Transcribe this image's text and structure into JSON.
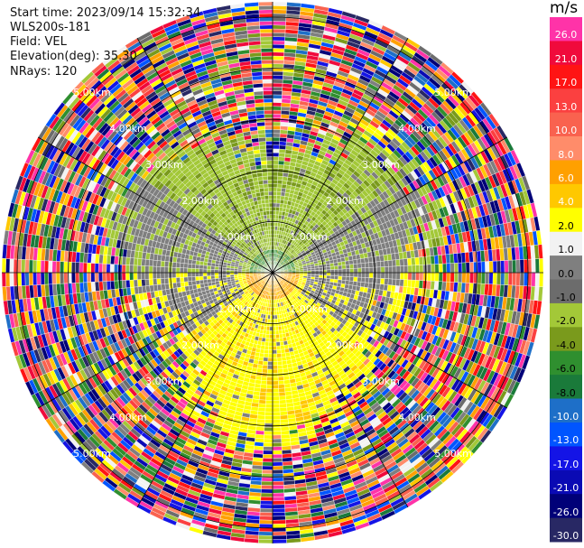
{
  "header": {
    "start_time": "Start time: 2023/09/14 15:32:34",
    "instrument": "WLS200s-181",
    "field": "Field: VEL",
    "elevation": "Elevation(deg): 35.30",
    "nrays": "NRays: 120"
  },
  "colorbar": {
    "unit": "m/s",
    "ticks": [
      "26.0",
      "21.0",
      "17.0",
      "13.0",
      "10.0",
      "8.0",
      "6.0",
      "4.0",
      "2.0",
      "1.0",
      "0.0",
      "-1.0",
      "-2.0",
      "-4.0",
      "-6.0",
      "-8.0",
      "-10.0",
      "-13.0",
      "-17.0",
      "-21.0",
      "-26.0",
      "-30.0"
    ],
    "colors": [
      "#ff33a8",
      "#f00a3c",
      "#ff1414",
      "#fb4040",
      "#f9624f",
      "#ff8c6a",
      "#ffa000",
      "#ffc800",
      "#ffff00",
      "#f2f2f2",
      "#7f7f7f",
      "#6c6c6c",
      "#a3c838",
      "#7a9a1c",
      "#2f8f2f",
      "#1a7a3a",
      "#1e6fc8",
      "#0055ff",
      "#1414e6",
      "#0a0ab4",
      "#000078",
      "#282864"
    ]
  },
  "range_labels": {
    "r1": "1.00km",
    "r2": "2.00km",
    "r3": "3.00km",
    "r4": "4.00km",
    "r5": "5.00km"
  },
  "chart_data": {
    "type": "heatmap",
    "projection": "polar PPI",
    "field": "VEL",
    "unit": "m/s",
    "n_rays": 120,
    "range_rings_km": [
      1,
      2,
      3,
      4,
      5
    ],
    "max_range_km": 5.3,
    "scale_min": -30.0,
    "scale_max": 26.0,
    "regions": [
      {
        "description": "north half within ~2.5 km",
        "velocity_ms": [
          -2.0,
          -4.0
        ]
      },
      {
        "description": "core north of center",
        "velocity_ms": -6.0
      },
      {
        "description": "south half within ~2.5 km",
        "velocity_ms": [
          2.0,
          4.0
        ]
      },
      {
        "description": "core south of center",
        "velocity_ms": 6.0
      },
      {
        "description": "east/west flanks",
        "velocity_ms": [
          0.0,
          -1.0
        ]
      },
      {
        "description": "beyond ~3 km",
        "velocity_ms": "noise (full scale)"
      }
    ]
  }
}
